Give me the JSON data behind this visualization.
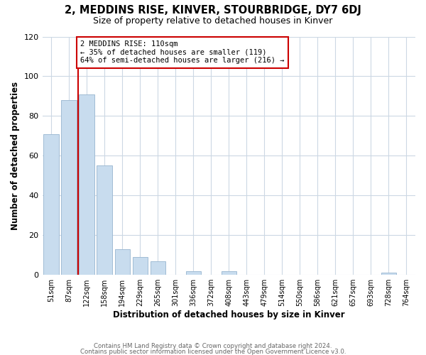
{
  "title": "2, MEDDINS RISE, KINVER, STOURBRIDGE, DY7 6DJ",
  "subtitle": "Size of property relative to detached houses in Kinver",
  "xlabel": "Distribution of detached houses by size in Kinver",
  "ylabel": "Number of detached properties",
  "bar_color": "#c8dcee",
  "bar_edge_color": "#a0bcd4",
  "categories": [
    "51sqm",
    "87sqm",
    "122sqm",
    "158sqm",
    "194sqm",
    "229sqm",
    "265sqm",
    "301sqm",
    "336sqm",
    "372sqm",
    "408sqm",
    "443sqm",
    "479sqm",
    "514sqm",
    "550sqm",
    "586sqm",
    "621sqm",
    "657sqm",
    "693sqm",
    "728sqm",
    "764sqm"
  ],
  "values": [
    71,
    88,
    91,
    55,
    13,
    9,
    7,
    0,
    2,
    0,
    2,
    0,
    0,
    0,
    0,
    0,
    0,
    0,
    0,
    1,
    0
  ],
  "ylim": [
    0,
    120
  ],
  "yticks": [
    0,
    20,
    40,
    60,
    80,
    100,
    120
  ],
  "vline_color": "#cc0000",
  "annotation_title": "2 MEDDINS RISE: 110sqm",
  "annotation_line1": "← 35% of detached houses are smaller (119)",
  "annotation_line2": "64% of semi-detached houses are larger (216) →",
  "annotation_box_color": "#ffffff",
  "annotation_box_edge": "#cc0000",
  "footer1": "Contains HM Land Registry data © Crown copyright and database right 2024.",
  "footer2": "Contains public sector information licensed under the Open Government Licence v3.0.",
  "background_color": "#ffffff",
  "grid_color": "#ccd8e4"
}
